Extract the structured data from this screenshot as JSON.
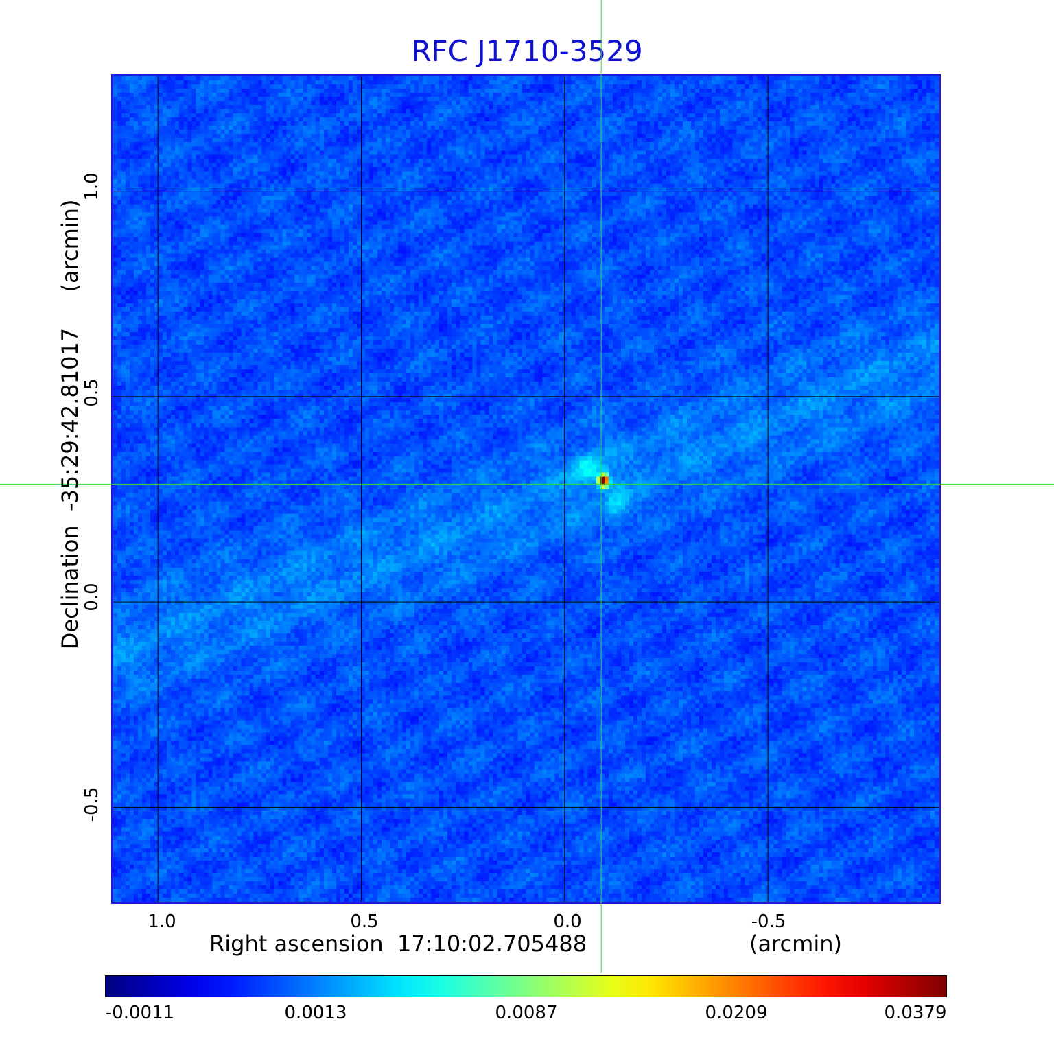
{
  "chart_data": {
    "type": "heatmap",
    "title": "RFC J1710-3529",
    "xlabel": "Right ascension  17:10:02.705488",
    "xunit": "(arcmin)",
    "ylabel": "Declination  -35:29:42.81017",
    "yunit": "(arcmin)",
    "x_ticks": [
      "1.0",
      "0.5",
      "0.0",
      "-0.5"
    ],
    "x_tick_values": [
      1.0,
      0.5,
      0.0,
      -0.5
    ],
    "y_ticks": [
      "1.0",
      "0.5",
      "0.0",
      "-0.5"
    ],
    "y_tick_values": [
      1.0,
      0.5,
      0.0,
      -0.5
    ],
    "xlim": [
      1.11,
      -0.92
    ],
    "ylim": [
      -0.73,
      1.28
    ],
    "grid": true,
    "crosshair": {
      "x": -0.09,
      "y": 0.287
    },
    "peak": {
      "x": -0.09,
      "y": 0.3
    },
    "colormap": "jet",
    "colorbar": {
      "labels": [
        "-0.0011",
        "0.0013",
        "0.0087",
        "0.0209",
        "0.0379"
      ],
      "values": [
        -0.0011,
        0.0013,
        0.0087,
        0.0209,
        0.0379
      ]
    },
    "colors": {
      "title": "#1010d0",
      "frame": "#1a1ad8",
      "grid": "#000000",
      "crosshair": "#33dd33",
      "background": "#1e64f0"
    }
  }
}
